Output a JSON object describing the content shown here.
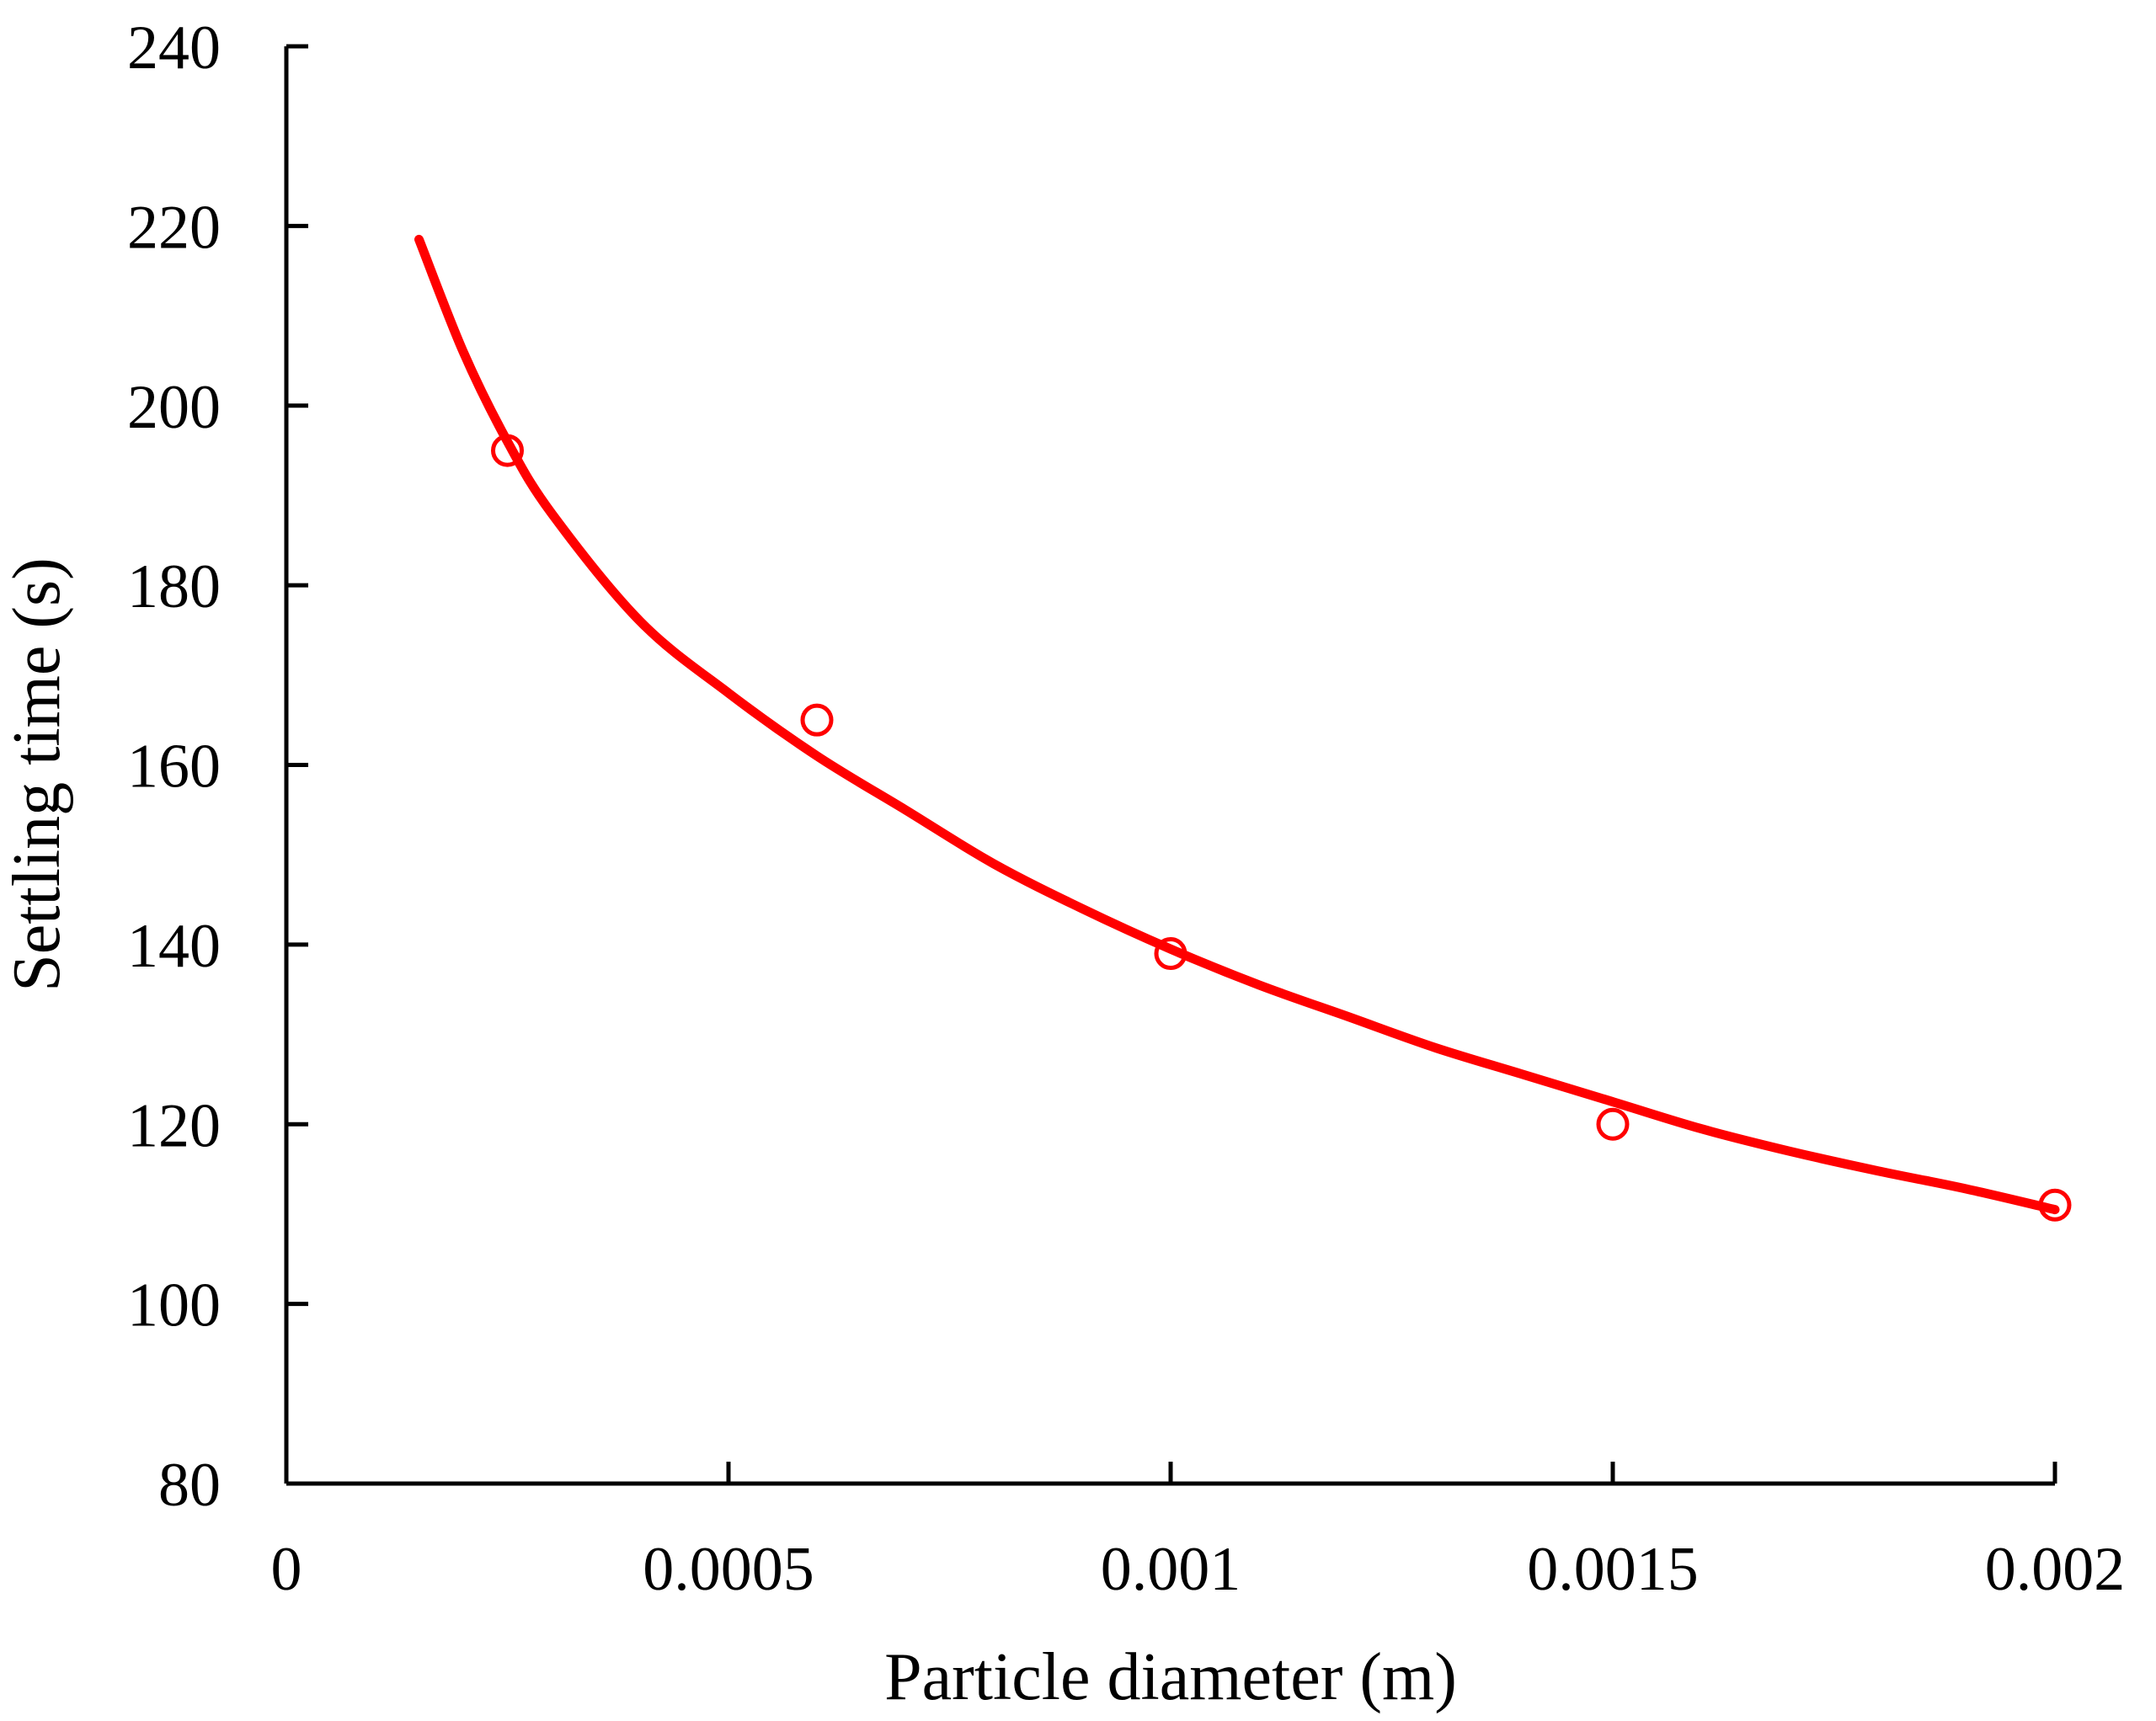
{
  "chart_data": {
    "type": "scatter",
    "title": "",
    "xlabel": "Particle diameter (m)",
    "ylabel": "Settling time (s)",
    "xlim": [
      0,
      0.002
    ],
    "ylim": [
      80,
      240
    ],
    "x_ticks": [
      "0",
      "0.0005",
      "0.001",
      "0.0015",
      "0.002"
    ],
    "y_ticks": [
      "80",
      "100",
      "120",
      "140",
      "160",
      "180",
      "200",
      "220",
      "240"
    ],
    "grid": false,
    "legend": "none",
    "series": [
      {
        "kind": "markers",
        "marker": "open-circle",
        "color": "#ff0000",
        "x": [
          0.00025,
          0.0006,
          0.001,
          0.0015,
          0.002
        ],
        "y": [
          195,
          165,
          139,
          120,
          111
        ]
      },
      {
        "kind": "fit-curve",
        "color": "#ff0000",
        "x": [
          0.00015,
          0.0002,
          0.00025,
          0.0003,
          0.0004,
          0.0005,
          0.0006,
          0.0007,
          0.0008,
          0.0009,
          0.001,
          0.0011,
          0.0012,
          0.0013,
          0.0014,
          0.0015,
          0.0016,
          0.0017,
          0.0018,
          0.0019,
          0.002
        ],
        "y": [
          218.5,
          206,
          196,
          188,
          176,
          168,
          161,
          155,
          149,
          144,
          139.5,
          135.5,
          132,
          128.5,
          125.5,
          122.5,
          119.5,
          117,
          114.8,
          112.8,
          110.5
        ]
      }
    ]
  }
}
